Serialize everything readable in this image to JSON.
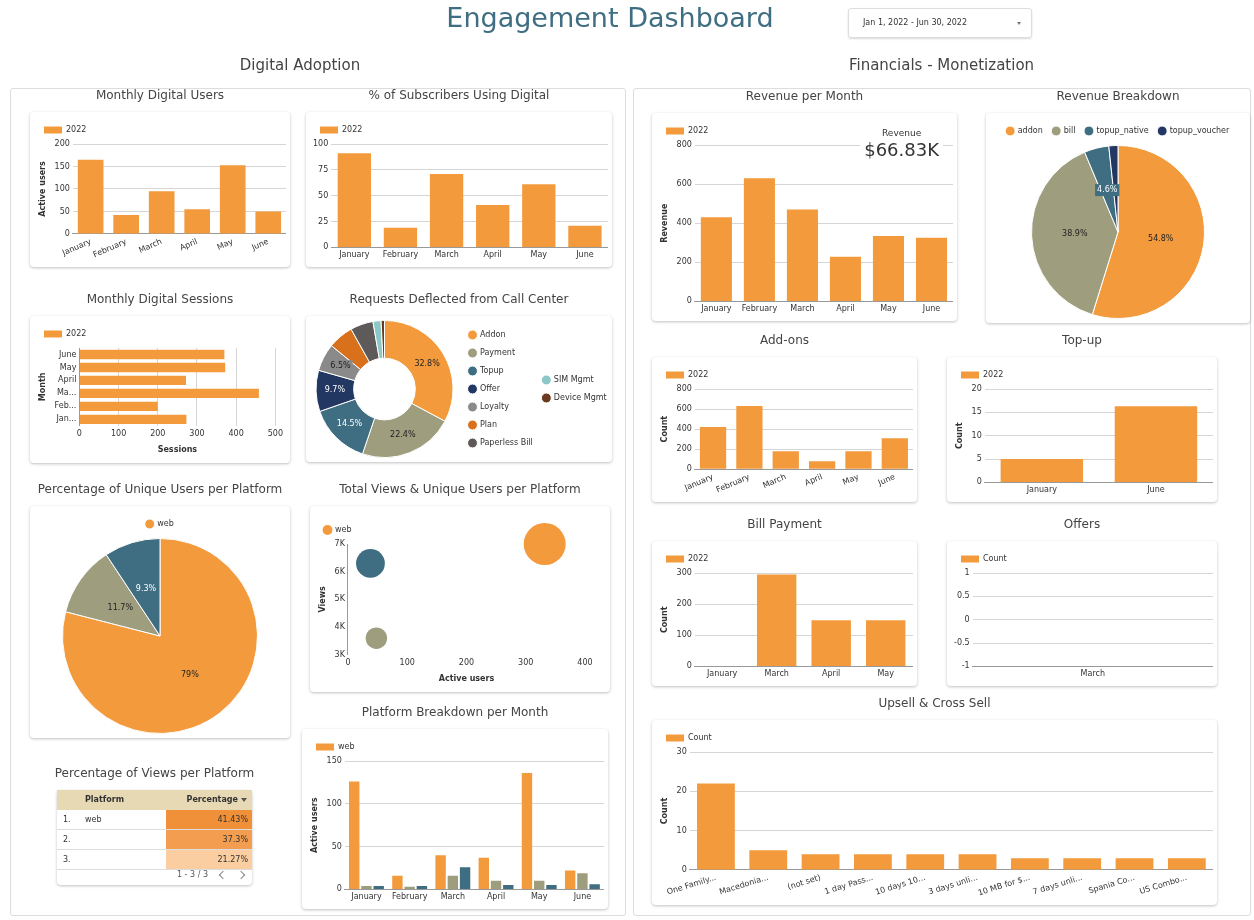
{
  "chart_data": [
    {
      "type": "other",
      "title": "Engagement Dashboard",
      "annotations": [
        "Jan 1, 2022 - Jun 30, 2022",
        "Digital Adoption",
        "Financials - Monetization"
      ]
    },
    {
      "type": "bar",
      "title": "Monthly Digital Users",
      "categories": [
        "January",
        "February",
        "March",
        "April",
        "May",
        "June"
      ],
      "series": [
        {
          "name": "2022",
          "color": "#f39a3d",
          "values": [
            165,
            42,
            95,
            55,
            153,
            50
          ]
        }
      ],
      "ylim": [
        0,
        200
      ],
      "yticks": [
        0,
        50,
        100,
        150,
        200
      ],
      "ylabel": "Active users",
      "grid": "y",
      "legend": "top left"
    },
    {
      "type": "bar",
      "title": "% of Subscribers Using Digital",
      "categories": [
        "January",
        "February",
        "March",
        "April",
        "May",
        "June"
      ],
      "series": [
        {
          "name": "2022",
          "color": "#f39a3d",
          "values": [
            91,
            19,
            71,
            41,
            61,
            21
          ]
        }
      ],
      "ylim": [
        0,
        100
      ],
      "yticks": [
        0,
        25,
        50,
        75,
        100
      ],
      "grid": "y",
      "legend": "top left"
    },
    {
      "type": "bar",
      "title": "Monthly Digital Sessions",
      "orientation": "horizontal",
      "categories": [
        "June",
        "May",
        "April",
        "Ma...",
        "Feb...",
        "Jan..."
      ],
      "series": [
        {
          "name": "2022",
          "color": "#f39a3d",
          "values": [
            370,
            372,
            272,
            458,
            200,
            273
          ]
        }
      ],
      "xlim": [
        0,
        500
      ],
      "xticks": [
        0,
        100,
        200,
        300,
        400,
        500
      ],
      "xlabel": "Sessions",
      "ylabel": "Month",
      "grid": "x",
      "legend": "top left"
    },
    {
      "type": "donut",
      "title": "Requests Deflected from Call Center",
      "categories": [
        "Addon",
        "Payment",
        "Topup",
        "Offer",
        "Loyalty",
        "Plan",
        "Paperless Bill",
        "SIM Mgmt",
        "Device Mgmt"
      ],
      "values": [
        32.8,
        22.4,
        14.5,
        9.7,
        6.5,
        6.0,
        5.4,
        1.9,
        0.8
      ],
      "colors": [
        "#f39a3d",
        "#9e9d7e",
        "#3f6e82",
        "#233763",
        "#8a8a8a",
        "#d9701c",
        "#5f5a5a",
        "#8cc8c8",
        "#6b3a1e"
      ],
      "value_labels": [
        "32.8%",
        "22.4%",
        "14.5%",
        "9.7%",
        "6.5%",
        null,
        null,
        null,
        null
      ],
      "legend": "right"
    },
    {
      "type": "pie",
      "title": "Percentage of Unique Users per Platform",
      "categories": [
        "web",
        null,
        null
      ],
      "values": [
        79,
        11.7,
        9.3
      ],
      "colors": [
        "#f39a3d",
        "#9e9d7e",
        "#3f6e82"
      ],
      "value_labels": [
        "79%",
        "11.7%",
        "9.3%"
      ],
      "legend": "top"
    },
    {
      "type": "heatmap",
      "title": "Percentage of Views per Platform",
      "ylabel": "Platform",
      "categories": [
        "Percentage"
      ],
      "y_categories": [
        "1.",
        "2.",
        "3."
      ],
      "y2_categories": [
        "web",
        null,
        null
      ],
      "cells": [
        [
          41.43
        ],
        [
          37.3
        ],
        [
          21.27
        ]
      ],
      "cell_labels": [
        [
          "41.43%"
        ],
        [
          "37.3%"
        ],
        [
          "21.27%"
        ]
      ],
      "annotations": [
        "1 - 3 / 3"
      ]
    },
    {
      "type": "bubble",
      "title": "Total Views & Unique Users per Platform",
      "series": [
        {
          "name": "web",
          "color": "#f39a3d",
          "x": [
            332
          ],
          "values": [
            7000
          ],
          "sizes": [
            1
          ]
        },
        {
          "color": "#9e9d7e",
          "x": [
            48
          ],
          "values": [
            3600
          ],
          "sizes": [
            0.26
          ]
        },
        {
          "color": "#3f6e82",
          "x": [
            38
          ],
          "values": [
            6300
          ],
          "sizes": [
            0.47
          ]
        }
      ],
      "xlim": [
        0,
        400
      ],
      "xticks": [
        0,
        100,
        200,
        300,
        400
      ],
      "ylim": [
        3000,
        7000
      ],
      "yticks": [
        {
          "value": 3000,
          "label": "3K"
        },
        {
          "value": 4000,
          "label": "4K"
        },
        {
          "value": 5000,
          "label": "5K"
        },
        {
          "value": 6000,
          "label": "6K"
        },
        {
          "value": 7000,
          "label": "7K"
        }
      ],
      "xlabel": "Active users",
      "ylabel": "Views",
      "legend": "top left"
    },
    {
      "type": "bar",
      "title": "Platform Breakdown per Month",
      "categories": [
        "January",
        "February",
        "March",
        "April",
        "May",
        "June"
      ],
      "series": [
        {
          "name": "web",
          "color": "#f39a3d",
          "values": [
            126,
            16,
            40,
            37,
            136,
            22
          ]
        },
        {
          "color": "#9e9d7e",
          "values": [
            4,
            3,
            16,
            10,
            10,
            19
          ]
        },
        {
          "color": "#3f6e82",
          "values": [
            4,
            4,
            26,
            5,
            5,
            6
          ]
        }
      ],
      "ylim": [
        0,
        150
      ],
      "yticks": [
        0,
        50,
        100,
        150
      ],
      "ylabel": "Active users",
      "grid": "y",
      "legend": "top left"
    },
    {
      "type": "bar",
      "title": "Revenue per Month",
      "categories": [
        "January",
        "February",
        "March",
        "April",
        "May",
        "June"
      ],
      "series": [
        {
          "name": "2022",
          "color": "#f39a3d",
          "values": [
            430,
            630,
            470,
            228,
            335,
            325
          ]
        }
      ],
      "ylim": [
        0,
        800
      ],
      "yticks": [
        0,
        200,
        400,
        600,
        800
      ],
      "ylabel": "Revenue",
      "grid": "y",
      "legend": "top left",
      "annotations": [
        "Revenue",
        "$66.83K"
      ]
    },
    {
      "type": "pie",
      "title": "Revenue Breakdown",
      "categories": [
        "addon",
        "bill",
        "topup_native",
        "topup_voucher"
      ],
      "values": [
        54.8,
        38.9,
        4.6,
        1.7
      ],
      "colors": [
        "#f39a3d",
        "#9e9d7e",
        "#3f6e82",
        "#233763"
      ],
      "value_labels": [
        "54.8%",
        "38.9%",
        "4.6%",
        null
      ],
      "legend": "top"
    },
    {
      "type": "bar",
      "title": "Add-ons",
      "categories": [
        "January",
        "February",
        "March",
        "April",
        "May",
        "June"
      ],
      "series": [
        {
          "name": "2022",
          "color": "#f39a3d",
          "values": [
            420,
            630,
            180,
            80,
            180,
            310
          ]
        }
      ],
      "ylim": [
        0,
        800
      ],
      "yticks": [
        0,
        200,
        400,
        600,
        800
      ],
      "ylabel": "Count",
      "grid": "y",
      "legend": "top left"
    },
    {
      "type": "bar",
      "title": "Top-up",
      "categories": [
        "January",
        "June"
      ],
      "series": [
        {
          "name": "2022",
          "color": "#f39a3d",
          "values": [
            5,
            16.3
          ]
        }
      ],
      "ylim": [
        0,
        20
      ],
      "yticks": [
        0,
        5,
        10,
        15,
        20
      ],
      "ylabel": "Count",
      "grid": "y",
      "legend": "top left"
    },
    {
      "type": "bar",
      "title": "Bill Payment",
      "categories": [
        "January",
        "March",
        "April",
        "May"
      ],
      "series": [
        {
          "name": "2022",
          "color": "#f39a3d",
          "values": [
            0,
            295,
            148,
            148
          ]
        }
      ],
      "ylim": [
        0,
        300
      ],
      "yticks": [
        0,
        100,
        200,
        300
      ],
      "ylabel": "Count",
      "grid": "y",
      "legend": "top left"
    },
    {
      "type": "bar",
      "title": "Offers",
      "categories": [
        "March"
      ],
      "series": [
        {
          "name": "Count",
          "color": "#f39a3d",
          "values": [
            0
          ]
        }
      ],
      "ylim": [
        -1,
        1
      ],
      "yticks": [
        -1,
        -0.5,
        0,
        0.5,
        1
      ],
      "grid": "y",
      "legend": "top left"
    },
    {
      "type": "bar",
      "title": "Upsell & Cross Sell",
      "categories": [
        "One Family...",
        "Macedonia...",
        "(not set)",
        "1 day Pass...",
        "10 days 10...",
        "3 days unli...",
        "10 MB for $...",
        "7 days unli...",
        "Spania Co...",
        "US Combo..."
      ],
      "series": [
        {
          "name": "Count",
          "color": "#f39a3d",
          "values": [
            22,
            5,
            4,
            4,
            4,
            4,
            3,
            3,
            3,
            3
          ]
        }
      ],
      "ylim": [
        0,
        30
      ],
      "yticks": [
        0,
        10,
        20,
        30
      ],
      "ylabel": "Count",
      "grid": "y",
      "legend": "top left"
    }
  ]
}
